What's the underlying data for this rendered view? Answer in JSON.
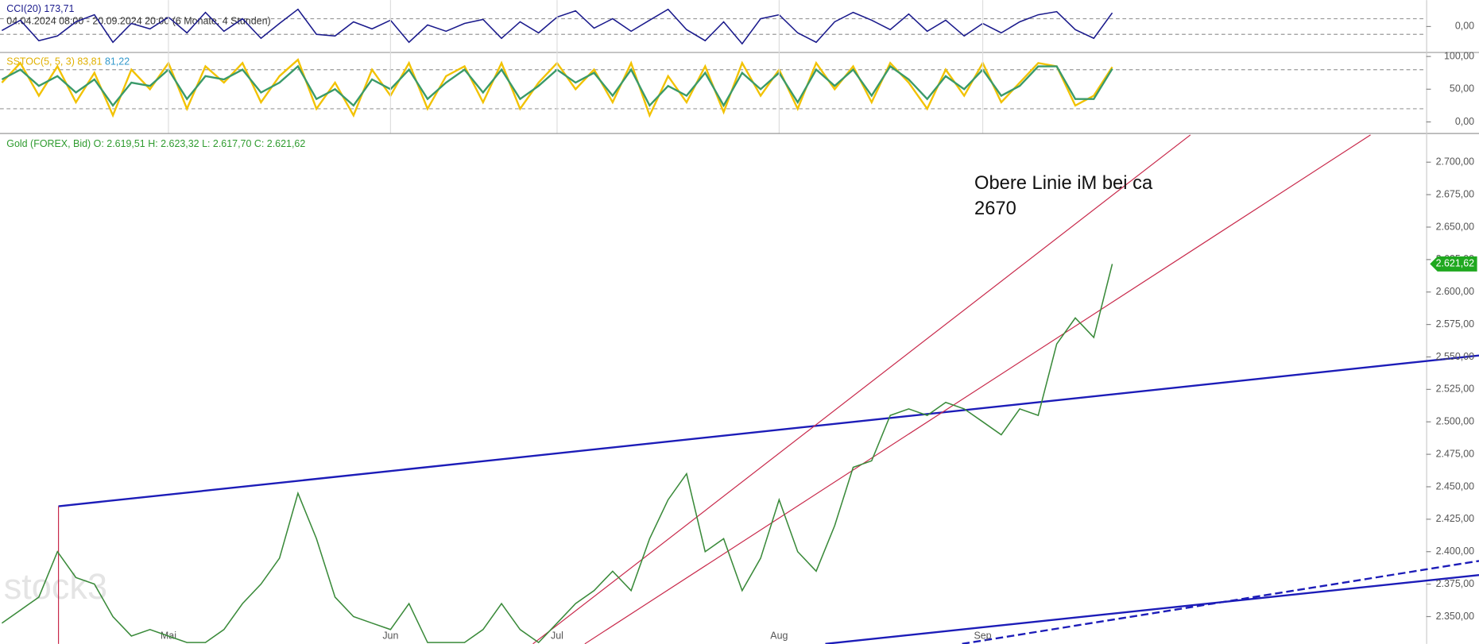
{
  "chart_data": [
    {
      "type": "line",
      "title": "CCI(20)",
      "current": "173,71",
      "period": "04.04.2024 08:00 - 20.09.2024 20:00",
      "period_note": "(6 Monate, 4 Stunden)",
      "ylim": [
        -300,
        300
      ],
      "yticks": [
        {
          "value": 0,
          "label": "0,00"
        }
      ],
      "series": [
        {
          "name": "CCI(20)",
          "color": "#1a1a8c",
          "values": [
            -50,
            80,
            -180,
            -120,
            60,
            150,
            -200,
            40,
            -30,
            120,
            -80,
            180,
            -60,
            100,
            -150,
            40,
            220,
            -100,
            -120,
            60,
            -30,
            80,
            -200,
            20,
            -60,
            40,
            90,
            -150,
            60,
            -80,
            120,
            200,
            -20,
            100,
            -60,
            80,
            220,
            -40,
            -180,
            60,
            -220,
            100,
            150,
            -80,
            -200,
            60,
            180,
            80,
            -40,
            160,
            -60,
            80,
            -120,
            40,
            -80,
            60,
            150,
            190,
            -40,
            -150,
            173.71
          ]
        }
      ]
    },
    {
      "type": "line",
      "title": "SSTOC(5, 5, 3)",
      "current": [
        "83,81",
        "81,22"
      ],
      "ylim": [
        -17,
        104
      ],
      "yticks": [
        {
          "value": 0,
          "label": "0,00"
        },
        {
          "value": 50,
          "label": "50,00"
        },
        {
          "value": 100,
          "label": "100,00"
        }
      ],
      "series": [
        {
          "name": "SSTOC(5, 5, 3)",
          "color": "#f2c200",
          "values": [
            60,
            90,
            40,
            85,
            30,
            75,
            10,
            80,
            50,
            90,
            20,
            85,
            60,
            90,
            30,
            70,
            95,
            20,
            60,
            10,
            80,
            40,
            90,
            20,
            70,
            85,
            30,
            90,
            20,
            60,
            90,
            50,
            80,
            30,
            90,
            10,
            70,
            30,
            85,
            15,
            90,
            40,
            80,
            20,
            90,
            50,
            85,
            30,
            90,
            60,
            20,
            80,
            40,
            90,
            30,
            60,
            90,
            85,
            25,
            40,
            83.81
          ]
        },
        {
          "color": "#3a9a6a",
          "values": [
            65,
            80,
            55,
            70,
            45,
            65,
            25,
            60,
            55,
            80,
            35,
            70,
            65,
            80,
            45,
            60,
            85,
            35,
            50,
            25,
            65,
            50,
            80,
            35,
            60,
            80,
            45,
            80,
            35,
            55,
            80,
            60,
            75,
            40,
            80,
            25,
            55,
            40,
            75,
            25,
            75,
            50,
            75,
            30,
            80,
            55,
            80,
            40,
            85,
            65,
            35,
            70,
            50,
            80,
            40,
            55,
            85,
            85,
            35,
            35,
            81.22
          ]
        }
      ]
    },
    {
      "type": "line",
      "ohlc": [
        "O: 2.619,51",
        "H: 2.623,32",
        "L: 2.617,70",
        "C: 2.621,62"
      ],
      "price_tag": "2.621,62",
      "annotation": [
        "Obere Linie iM bei ca",
        "2670"
      ],
      "watermark": "stock3",
      "categories": [
        null,
        null,
        null,
        null,
        null,
        null,
        null,
        null,
        null,
        "Mai",
        null,
        null,
        null,
        null,
        null,
        null,
        null,
        null,
        null,
        null,
        null,
        "Jun",
        null,
        null,
        null,
        null,
        null,
        null,
        null,
        null,
        "Jul",
        null,
        null,
        null,
        null,
        null,
        null,
        null,
        null,
        null,
        null,
        null,
        "Aug",
        null,
        null,
        null,
        null,
        null,
        null,
        null,
        null,
        null,
        null,
        "Sep",
        null,
        null,
        null,
        null,
        null,
        null,
        null
      ],
      "ylim": [
        2329,
        2721
      ],
      "yticks": [
        {
          "value": 2350,
          "label": "2.350,00"
        },
        {
          "value": 2375,
          "label": "2.375,00"
        },
        {
          "value": 2400,
          "label": "2.400,00"
        },
        {
          "value": 2425,
          "label": "2.425,00"
        },
        {
          "value": 2450,
          "label": "2.450,00"
        },
        {
          "value": 2475,
          "label": "2.475,00"
        },
        {
          "value": 2500,
          "label": "2.500,00"
        },
        {
          "value": 2525,
          "label": "2.525,00"
        },
        {
          "value": 2550,
          "label": "2.550,00"
        },
        {
          "value": 2575,
          "label": "2.575,00"
        },
        {
          "value": 2600,
          "label": "2.600,00"
        },
        {
          "value": 2625,
          "label": "2.625,00"
        },
        {
          "value": 2650,
          "label": "2.650,00"
        },
        {
          "value": 2675,
          "label": "2.675,00"
        },
        {
          "value": 2700,
          "label": "2.700,00"
        }
      ],
      "series": [
        {
          "name": "Gold (FOREX, Bid)",
          "color": "#3a8a3a",
          "values": [
            2345,
            2355,
            2365,
            2400,
            2380,
            2375,
            2350,
            2335,
            2340,
            2335,
            2330,
            2330,
            2340,
            2360,
            2375,
            2395,
            2445,
            2410,
            2365,
            2350,
            2345,
            2340,
            2360,
            2330,
            2330,
            2330,
            2340,
            2360,
            2340,
            2330,
            2345,
            2360,
            2370,
            2385,
            2370,
            2410,
            2440,
            2460,
            2400,
            2410,
            2370,
            2395,
            2440,
            2400,
            2385,
            2420,
            2465,
            2470,
            2505,
            2510,
            2505,
            2515,
            2510,
            2500,
            2490,
            2510,
            2505,
            2560,
            2580,
            2565,
            2621.62
          ]
        }
      ]
    }
  ]
}
